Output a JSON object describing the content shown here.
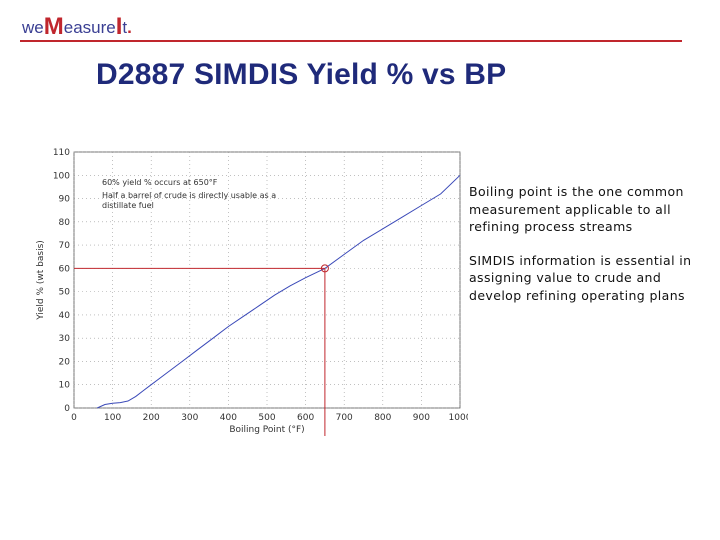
{
  "header": {
    "logo_parts": [
      "we",
      "M",
      "easure",
      "I",
      "t",
      "."
    ],
    "title": "D2887 SIMDIS Yield % vs BP"
  },
  "colors": {
    "logo_blue": "#3a3f93",
    "logo_red": "#c0262d",
    "title_blue": "#1f2a7a",
    "curve_blue": "#3a49b8",
    "marker_red": "#c0262d"
  },
  "chart_data": {
    "type": "line",
    "xlabel": "Boiling Point (°F)",
    "ylabel": "Yield % (wt basis)",
    "xlim": [
      0,
      1000
    ],
    "ylim": [
      0,
      110
    ],
    "xticks": [
      0,
      100,
      200,
      300,
      400,
      500,
      600,
      700,
      800,
      900,
      1000
    ],
    "yticks": [
      0,
      10,
      20,
      30,
      40,
      50,
      60,
      70,
      80,
      90,
      100,
      110
    ],
    "grid": true,
    "annotations": [
      "60% yield % occurs at 650°F",
      "Half a barrel of crude is directly usable as a distillate fuel"
    ],
    "highlight_point": {
      "x": 650,
      "y": 60
    },
    "series": [
      {
        "x": [
          60,
          80,
          100,
          120,
          140,
          160,
          180,
          200,
          240,
          280,
          320,
          360,
          400,
          440,
          480,
          520,
          560,
          600,
          650,
          700,
          750,
          800,
          850,
          900,
          950,
          1000
        ],
        "values": [
          0,
          1.5,
          2,
          2.3,
          3,
          5,
          7.5,
          10,
          15,
          20,
          25,
          30,
          35,
          39.5,
          44,
          48.5,
          52.5,
          56,
          60,
          66,
          72,
          77,
          82,
          87,
          92,
          100
        ]
      }
    ]
  },
  "bullets": [
    "Boiling point is the one common measurement applicable to all refining process streams",
    "SIMDIS information is essential in assigning value to crude and develop refining operating plans"
  ]
}
